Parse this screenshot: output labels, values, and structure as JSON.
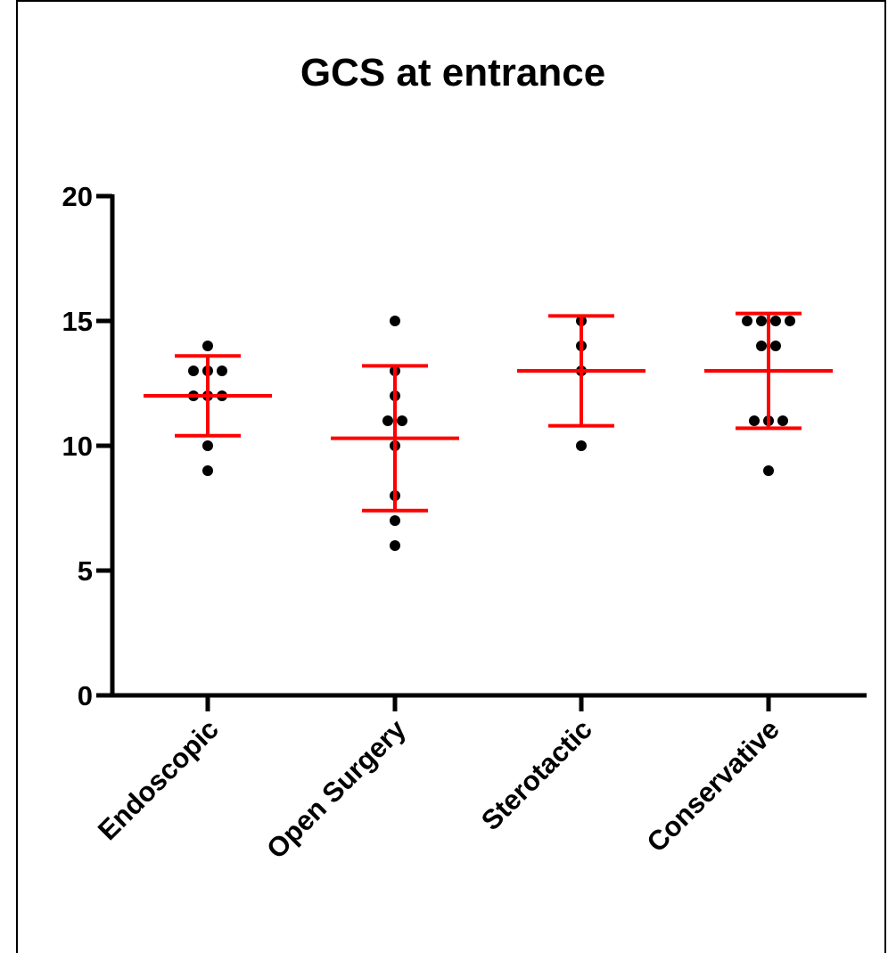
{
  "chart_data": {
    "type": "scatter",
    "title": "GCS at entrance",
    "xlabel": "",
    "ylabel": "",
    "ylim": [
      0,
      20
    ],
    "yticks": [
      0,
      5,
      10,
      15,
      20
    ],
    "categories": [
      "Endoscopic",
      "Open Surgery",
      "Sterotactic",
      "Conservative"
    ],
    "points": [
      [
        14,
        13,
        13,
        13,
        12,
        12,
        12,
        10,
        9
      ],
      [
        15,
        13,
        12,
        11,
        11,
        10,
        8,
        7,
        6
      ],
      [
        15,
        14,
        13,
        10
      ],
      [
        15,
        15,
        15,
        15,
        14,
        14,
        11,
        11,
        11,
        9
      ]
    ],
    "mean": [
      12.0,
      10.3,
      13.0,
      13.0
    ],
    "error_upper": [
      13.6,
      13.2,
      15.2,
      15.3
    ],
    "error_lower": [
      10.4,
      7.4,
      10.8,
      10.7
    ],
    "grid": false,
    "legend": "none",
    "point_color": "#000000",
    "summary_color": "#ff0000"
  }
}
